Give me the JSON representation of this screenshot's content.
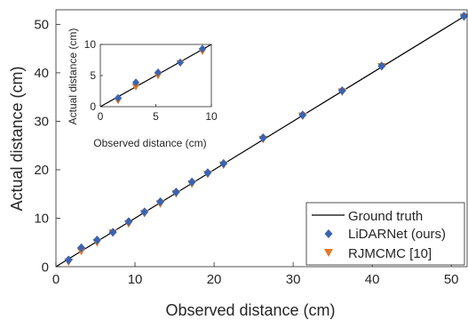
{
  "chart_data": [
    {
      "type": "scatter",
      "xlabel": "Observed distance (cm)",
      "ylabel": "Actual distance (cm)",
      "xlim": [
        0,
        52
      ],
      "ylim": [
        0,
        53
      ],
      "xticks": [
        0,
        10,
        20,
        30,
        40,
        50
      ],
      "yticks": [
        0,
        10,
        20,
        30,
        40,
        50
      ],
      "grid": false,
      "legend_position": "bottom-right",
      "legend": [
        "Ground truth",
        "LiDARNet (ours)",
        "RJMCMC [10]"
      ],
      "colors": {
        "ground_truth": "#000000",
        "lidarnet": "#3a64b0",
        "rjmcmc": "#e07b2a"
      },
      "series": [
        {
          "name": "Ground truth",
          "marker": "line",
          "x": [
            0,
            52
          ],
          "y": [
            0,
            52
          ]
        },
        {
          "name": "LiDARNet (ours)",
          "marker": "diamond",
          "x": [
            1.6,
            3.2,
            5.2,
            7.2,
            9.2,
            11.2,
            13.2,
            15.2,
            17.2,
            19.2,
            21.2,
            26.2,
            31.2,
            36.2,
            41.2,
            51.6
          ],
          "y": [
            1.4,
            3.9,
            5.5,
            7.1,
            9.3,
            11.3,
            13.4,
            15.4,
            17.5,
            19.4,
            21.3,
            26.6,
            31.3,
            36.3,
            41.4,
            51.7
          ]
        },
        {
          "name": "RJMCMC [10]",
          "marker": "triangle-down",
          "x": [
            1.6,
            3.2,
            5.2,
            7.2,
            9.2,
            11.2,
            13.2,
            15.2,
            17.2,
            19.2,
            21.2,
            26.2,
            31.2,
            36.2,
            41.2,
            51.6
          ],
          "y": [
            1.0,
            3.2,
            5.0,
            7.0,
            8.9,
            11.0,
            13.0,
            15.1,
            17.1,
            19.1,
            21.0,
            26.3,
            31.1,
            36.1,
            41.3,
            51.5
          ]
        }
      ]
    },
    {
      "type": "scatter",
      "xlabel": "Observed distance (cm)",
      "ylabel": "Actual distance (cm)",
      "xlim": [
        0,
        10
      ],
      "ylim": [
        0,
        10
      ],
      "xticks": [
        0,
        5,
        10
      ],
      "yticks": [
        0,
        5,
        10
      ],
      "grid": false,
      "series": [
        {
          "name": "Ground truth",
          "marker": "line",
          "x": [
            0,
            10
          ],
          "y": [
            0,
            10
          ]
        },
        {
          "name": "LiDARNet (ours)",
          "marker": "diamond",
          "x": [
            1.6,
            3.2,
            5.2,
            7.2,
            9.2
          ],
          "y": [
            1.4,
            3.9,
            5.5,
            7.1,
            9.3
          ]
        },
        {
          "name": "RJMCMC [10]",
          "marker": "triangle-down",
          "x": [
            1.6,
            3.2,
            5.2,
            7.2,
            9.2
          ],
          "y": [
            1.0,
            3.2,
            5.0,
            7.0,
            8.9
          ]
        }
      ]
    }
  ]
}
